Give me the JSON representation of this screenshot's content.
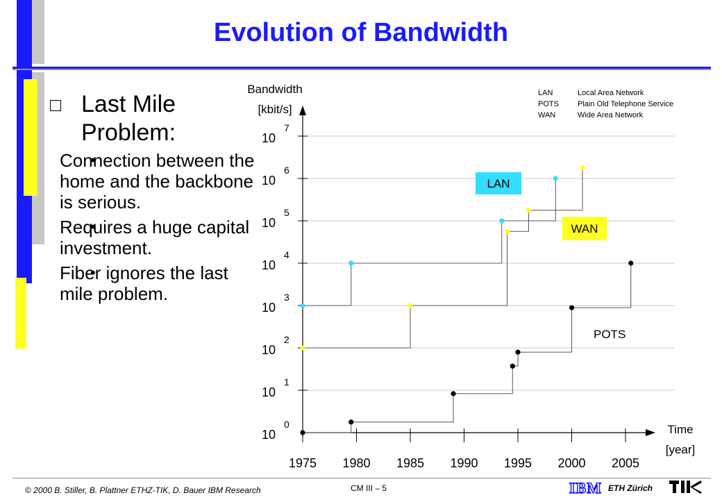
{
  "slide": {
    "title": "Evolution of Bandwidth",
    "heading": "Last Mile Problem:",
    "bullets": [
      "Connection between the home and the backbone is serious.",
      "Requires a huge capital investment.",
      "Fiber ignores the last mile problem."
    ],
    "footer_left": "© 2000  B. Stiller, B. Plattner ETHZ-TIK, D. Bauer IBM Research",
    "footer_center": "CM III  – 5",
    "footer_right": "ETH Zürich",
    "logo_ibm": "IBM"
  },
  "colors": {
    "title": "#1a1aff",
    "lan": "#33ddff",
    "wan": "#ffff22",
    "pots": "#000000",
    "sidebar_blue": "#1a1aff",
    "sidebar_yellow": "#ffff22",
    "sidebar_gray": "#c8c8c8"
  },
  "legend": [
    {
      "abbr": "LAN",
      "desc": "Local Area Network"
    },
    {
      "abbr": "POTS",
      "desc": "Plain Old Telephone  Service"
    },
    {
      "abbr": "WAN",
      "desc": "Wide Area Network"
    }
  ],
  "chart_data": {
    "type": "line",
    "title": "",
    "ylabel": "Bandwidth [kbit/s]",
    "xlabel": "Time [year]",
    "x_ticks": [
      1975,
      1980,
      1985,
      1990,
      1995,
      2000,
      2005
    ],
    "y_ticks": [
      0,
      1,
      2,
      3,
      4,
      5,
      6,
      7
    ],
    "y_tick_prefix": "10",
    "yscale": "log10",
    "xlim": [
      1975,
      2007
    ],
    "ylim": [
      0,
      7.3
    ],
    "series": [
      {
        "name": "LAN",
        "color": "#33ddff",
        "step": true,
        "points": [
          [
            1975,
            3
          ],
          [
            1979.5,
            4
          ],
          [
            1993.5,
            5
          ],
          [
            1998.5,
            6
          ]
        ]
      },
      {
        "name": "WAN",
        "color": "#ffff22",
        "step": true,
        "points": [
          [
            1975,
            2
          ],
          [
            1985,
            3
          ],
          [
            1994,
            4.75
          ],
          [
            1996,
            5.25
          ],
          [
            2001,
            6.25
          ]
        ]
      },
      {
        "name": "POTS",
        "color": "#000000",
        "step": true,
        "points": [
          [
            1975,
            0
          ],
          [
            1979.5,
            0.25
          ],
          [
            1989,
            0.92
          ],
          [
            1994.5,
            1.57
          ],
          [
            1995,
            1.9
          ],
          [
            2000,
            2.95
          ],
          [
            2005.5,
            4
          ]
        ]
      }
    ],
    "labels": [
      {
        "text": "LAN",
        "style": "box",
        "fill": "#33ddff"
      },
      {
        "text": "WAN",
        "style": "box",
        "fill": "#ffff22"
      },
      {
        "text": "POTS",
        "style": "plain"
      }
    ]
  }
}
